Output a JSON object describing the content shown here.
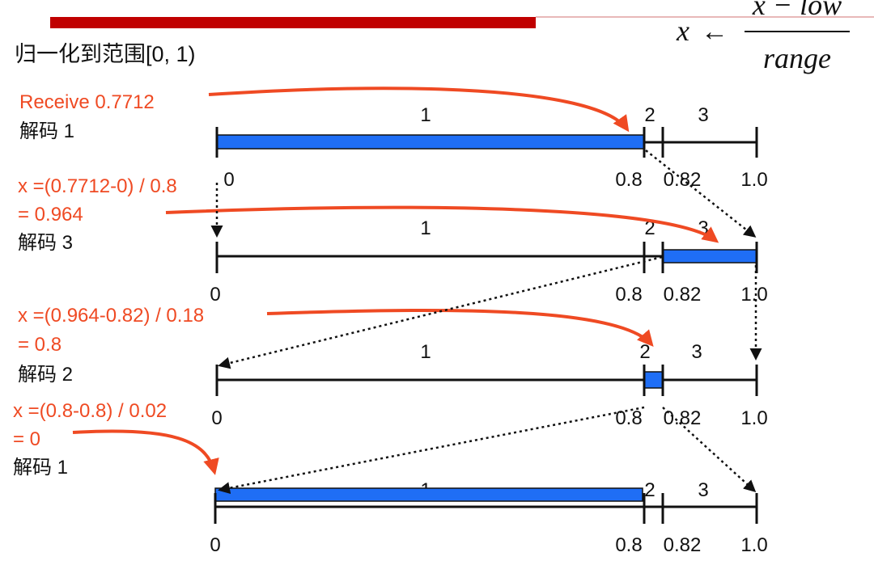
{
  "header": {
    "title": "归一化到范围[0, 1)",
    "formula": {
      "lhs": "x",
      "arrow": "←",
      "numerator": "x − low",
      "denominator": "range"
    }
  },
  "ticks": [
    "0",
    "0.8",
    "0.82",
    "1.0"
  ],
  "segment_labels": [
    "1",
    "2",
    "3"
  ],
  "rows": [
    {
      "steps": [
        "Receive 0.7712"
      ],
      "decode": "解码 1"
    },
    {
      "steps": [
        "x =(0.7712-0) / 0.8",
        "= 0.964"
      ],
      "decode": "解码 3"
    },
    {
      "steps": [
        "x =(0.964-0.82) / 0.18",
        "= 0.8"
      ],
      "decode": "解码 2"
    },
    {
      "steps": [
        "x =(0.8-0.8) / 0.02",
        "= 0"
      ],
      "decode": "解码 1"
    }
  ],
  "colors": {
    "accent_bar": "#c00000",
    "highlight": "#1f6ef5",
    "annotation": "#ef4a23",
    "line": "#111111"
  }
}
